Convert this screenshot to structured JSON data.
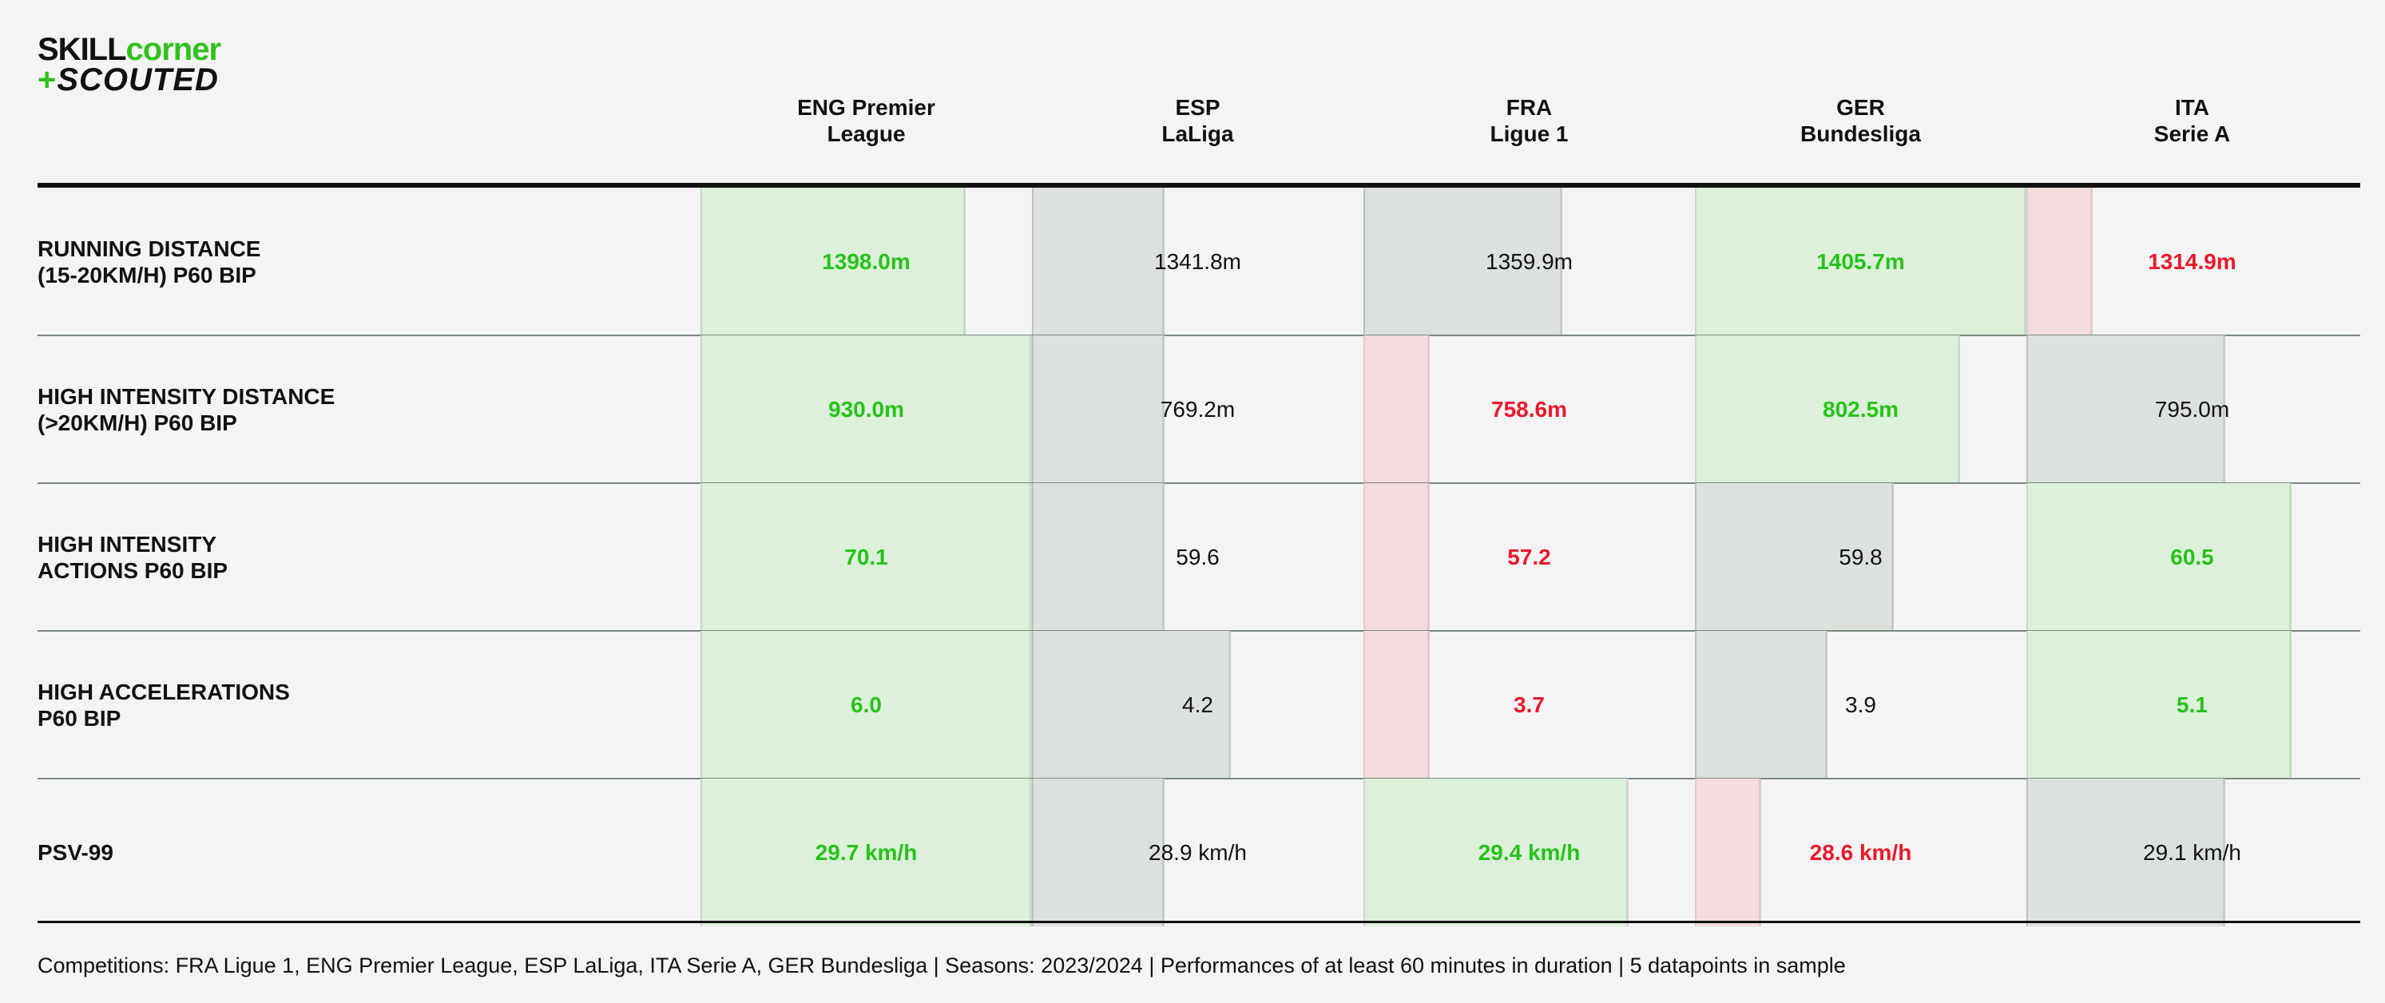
{
  "logo": {
    "line1_a": "SKILL",
    "line1_b": "corner",
    "line2_plus": "+",
    "line2_b": "SCOUTED"
  },
  "colors": {
    "good_text": "#27c21a",
    "bad_text": "#e8192c",
    "good_bar": "#dcf0da",
    "mid_bar": "#dde1de",
    "bad_bar": "#f3dcdd"
  },
  "chart_data": {
    "type": "table",
    "columns": [
      {
        "line1": "ENG Premier",
        "line2": "League"
      },
      {
        "line1": "ESP",
        "line2": "LaLiga"
      },
      {
        "line1": "FRA",
        "line2": "Ligue 1"
      },
      {
        "line1": "GER",
        "line2": "Bundesliga"
      },
      {
        "line1": "ITA",
        "line2": "Serie A"
      }
    ],
    "rows": [
      {
        "label_line1": "RUNNING DISTANCE",
        "label_line2": "(15-20KM/H) P60 BIP",
        "cells": [
          {
            "text": "1398.0m",
            "value": 1398.0,
            "status": "good",
            "bar_fraction": 0.8
          },
          {
            "text": "1341.8m",
            "value": 1341.8,
            "status": "mid",
            "bar_fraction": 0.4
          },
          {
            "text": "1359.9m",
            "value": 1359.9,
            "status": "mid",
            "bar_fraction": 0.6
          },
          {
            "text": "1405.7m",
            "value": 1405.7,
            "status": "good",
            "bar_fraction": 1.0
          },
          {
            "text": "1314.9m",
            "value": 1314.9,
            "status": "bad",
            "bar_fraction": 0.2
          }
        ]
      },
      {
        "label_line1": "HIGH INTENSITY DISTANCE",
        "label_line2": "(>20KM/H) P60 BIP",
        "cells": [
          {
            "text": "930.0m",
            "value": 930.0,
            "status": "good",
            "bar_fraction": 1.0
          },
          {
            "text": "769.2m",
            "value": 769.2,
            "status": "mid",
            "bar_fraction": 0.4
          },
          {
            "text": "758.6m",
            "value": 758.6,
            "status": "bad",
            "bar_fraction": 0.2
          },
          {
            "text": "802.5m",
            "value": 802.5,
            "status": "good",
            "bar_fraction": 0.8
          },
          {
            "text": "795.0m",
            "value": 795.0,
            "status": "mid",
            "bar_fraction": 0.6
          }
        ]
      },
      {
        "label_line1": "HIGH INTENSITY",
        "label_line2": "ACTIONS P60 BIP",
        "cells": [
          {
            "text": "70.1",
            "value": 70.1,
            "status": "good",
            "bar_fraction": 1.0
          },
          {
            "text": "59.6",
            "value": 59.6,
            "status": "mid",
            "bar_fraction": 0.4
          },
          {
            "text": "57.2",
            "value": 57.2,
            "status": "bad",
            "bar_fraction": 0.2
          },
          {
            "text": "59.8",
            "value": 59.8,
            "status": "mid",
            "bar_fraction": 0.6
          },
          {
            "text": "60.5",
            "value": 60.5,
            "status": "good",
            "bar_fraction": 0.8
          }
        ]
      },
      {
        "label_line1": "HIGH ACCELERATIONS",
        "label_line2": "P60 BIP",
        "cells": [
          {
            "text": "6.0",
            "value": 6.0,
            "status": "good",
            "bar_fraction": 1.0
          },
          {
            "text": "4.2",
            "value": 4.2,
            "status": "mid",
            "bar_fraction": 0.6
          },
          {
            "text": "3.7",
            "value": 3.7,
            "status": "bad",
            "bar_fraction": 0.2
          },
          {
            "text": "3.9",
            "value": 3.9,
            "status": "mid",
            "bar_fraction": 0.4
          },
          {
            "text": "5.1",
            "value": 5.1,
            "status": "good",
            "bar_fraction": 0.8
          }
        ]
      },
      {
        "label_line1": "PSV-99",
        "label_line2": "",
        "cells": [
          {
            "text": "29.7 km/h",
            "value": 29.7,
            "status": "good",
            "bar_fraction": 1.0
          },
          {
            "text": "28.9 km/h",
            "value": 28.9,
            "status": "mid",
            "bar_fraction": 0.4
          },
          {
            "text": "29.4 km/h",
            "value": 29.4,
            "status": "good",
            "bar_fraction": 0.8
          },
          {
            "text": "28.6 km/h",
            "value": 28.6,
            "status": "bad",
            "bar_fraction": 0.2
          },
          {
            "text": "29.1 km/h",
            "value": 29.1,
            "status": "mid",
            "bar_fraction": 0.6
          }
        ]
      }
    ]
  },
  "footer": "Competitions: FRA Ligue 1, ENG Premier League, ESP LaLiga, ITA Serie A, GER Bundesliga | Seasons: 2023/2024 | Performances of at least 60 minutes in duration | 5 datapoints in sample"
}
